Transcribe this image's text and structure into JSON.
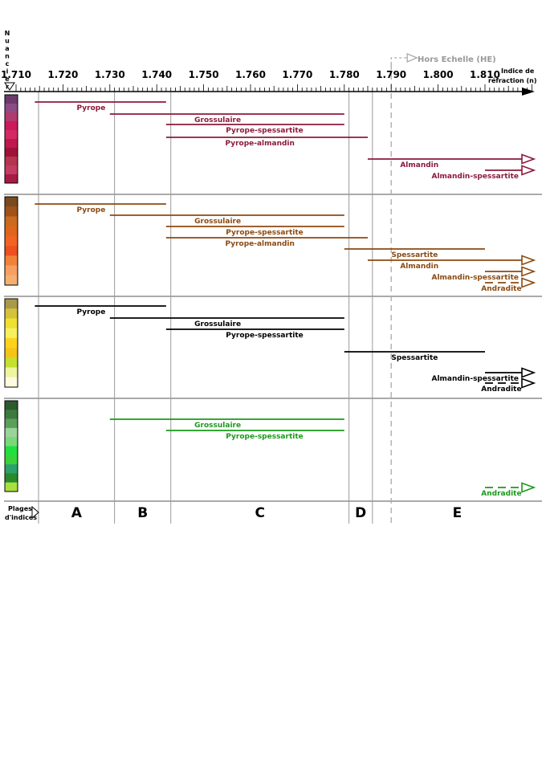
{
  "chart_data": {
    "type": "range",
    "title": "",
    "xlabel": "Indice de réfraction (n)",
    "vertical_label": "Nuancier",
    "x_range": [
      1.71,
      1.82
    ],
    "x_ticks": [
      "1.710",
      "1.720",
      "1.730",
      "1.740",
      "1.750",
      "1.760",
      "1.770",
      "1.780",
      "1.790",
      "1.800",
      "1.810"
    ],
    "out_of_scale": {
      "label": "Hors Echelle (HE)",
      "x": 1.79
    },
    "zones_label": "Plages d'indices",
    "zone_boundaries": [
      1.715,
      1.731,
      1.743,
      1.781,
      1.786,
      1.82
    ],
    "zones": [
      "A",
      "B",
      "C",
      "D",
      "E"
    ],
    "color_groups": [
      {
        "accent": "#8b1a3c",
        "swatches": [
          "#6b3b6b",
          "#8d4b86",
          "#b03a6c",
          "#cc1a5a",
          "#d42a62",
          "#c0184e",
          "#9e1238",
          "#b5344f",
          "#c23c63",
          "#a81a44"
        ],
        "series": [
          {
            "name": "Pyrope",
            "start": 1.714,
            "end": 1.742,
            "style": "solid",
            "arrow": false
          },
          {
            "name": "Grossulaire",
            "start": 1.73,
            "end": 1.78,
            "style": "solid",
            "arrow": false
          },
          {
            "name": "Pyrope-spessartite",
            "start": 1.742,
            "end": 1.78,
            "style": "solid",
            "arrow": false
          },
          {
            "name": "Pyrope-almandin",
            "start": 1.742,
            "end": 1.785,
            "style": "solid",
            "arrow": false
          },
          {
            "name": "Almandin",
            "start": 1.785,
            "end": 1.82,
            "style": "solid",
            "arrow": true
          },
          {
            "name": "Almandin-spessartite",
            "start": 1.81,
            "end": 1.82,
            "style": "solid",
            "arrow": true
          }
        ]
      },
      {
        "accent": "#8b4a12",
        "swatches": [
          "#7a4a1e",
          "#a0521a",
          "#c96a1e",
          "#e0641c",
          "#f26424",
          "#ee5020",
          "#f2823a",
          "#f5a060",
          "#f5b070"
        ],
        "series": [
          {
            "name": "Pyrope",
            "start": 1.714,
            "end": 1.742,
            "style": "solid",
            "arrow": false
          },
          {
            "name": "Grossulaire",
            "start": 1.73,
            "end": 1.78,
            "style": "solid",
            "arrow": false
          },
          {
            "name": "Pyrope-spessartite",
            "start": 1.742,
            "end": 1.78,
            "style": "solid",
            "arrow": false
          },
          {
            "name": "Pyrope-almandin",
            "start": 1.742,
            "end": 1.785,
            "style": "solid",
            "arrow": false
          },
          {
            "name": "Spessartite",
            "start": 1.78,
            "end": 1.81,
            "style": "solid",
            "arrow": false
          },
          {
            "name": "Almandin",
            "start": 1.785,
            "end": 1.82,
            "style": "solid",
            "arrow": true
          },
          {
            "name": "Almandin-spessartite",
            "start": 1.81,
            "end": 1.82,
            "style": "solid",
            "arrow": true
          },
          {
            "name": "Andradite",
            "start": 1.81,
            "end": 1.82,
            "style": "dashed",
            "arrow": true
          }
        ]
      },
      {
        "accent": "#000000",
        "swatches": [
          "#a89a4a",
          "#d6c23a",
          "#f0e030",
          "#f5f060",
          "#ffd21a",
          "#f5c418",
          "#c6e030",
          "#eef5a0",
          "#fffbe0"
        ],
        "series": [
          {
            "name": "Pyrope",
            "start": 1.714,
            "end": 1.742,
            "style": "solid",
            "arrow": false
          },
          {
            "name": "Grossulaire",
            "start": 1.73,
            "end": 1.78,
            "style": "solid",
            "arrow": false
          },
          {
            "name": "Pyrope-spessartite",
            "start": 1.742,
            "end": 1.78,
            "style": "solid",
            "arrow": false
          },
          {
            "name": "Spessartite",
            "start": 1.78,
            "end": 1.81,
            "style": "solid",
            "arrow": false
          },
          {
            "name": "Almandin-spessartite",
            "start": 1.81,
            "end": 1.82,
            "style": "solid",
            "arrow": true
          },
          {
            "name": "Andradite",
            "start": 1.81,
            "end": 1.82,
            "style": "dashed",
            "arrow": true
          }
        ]
      },
      {
        "accent": "#1a9a1a",
        "swatches": [
          "#2d5a2d",
          "#3d7a3d",
          "#5aa05a",
          "#9ad49a",
          "#7ad87a",
          "#20e040",
          "#3ad23a",
          "#2ca06a",
          "#2a8a2a",
          "#a8e040"
        ],
        "series": [
          {
            "name": "Grossulaire",
            "start": 1.73,
            "end": 1.78,
            "style": "solid",
            "arrow": false
          },
          {
            "name": "Pyrope-spessartite",
            "start": 1.742,
            "end": 1.78,
            "style": "solid",
            "arrow": false
          },
          {
            "name": "Andradite",
            "start": 1.81,
            "end": 1.82,
            "style": "dashed",
            "arrow": true
          }
        ]
      }
    ]
  }
}
